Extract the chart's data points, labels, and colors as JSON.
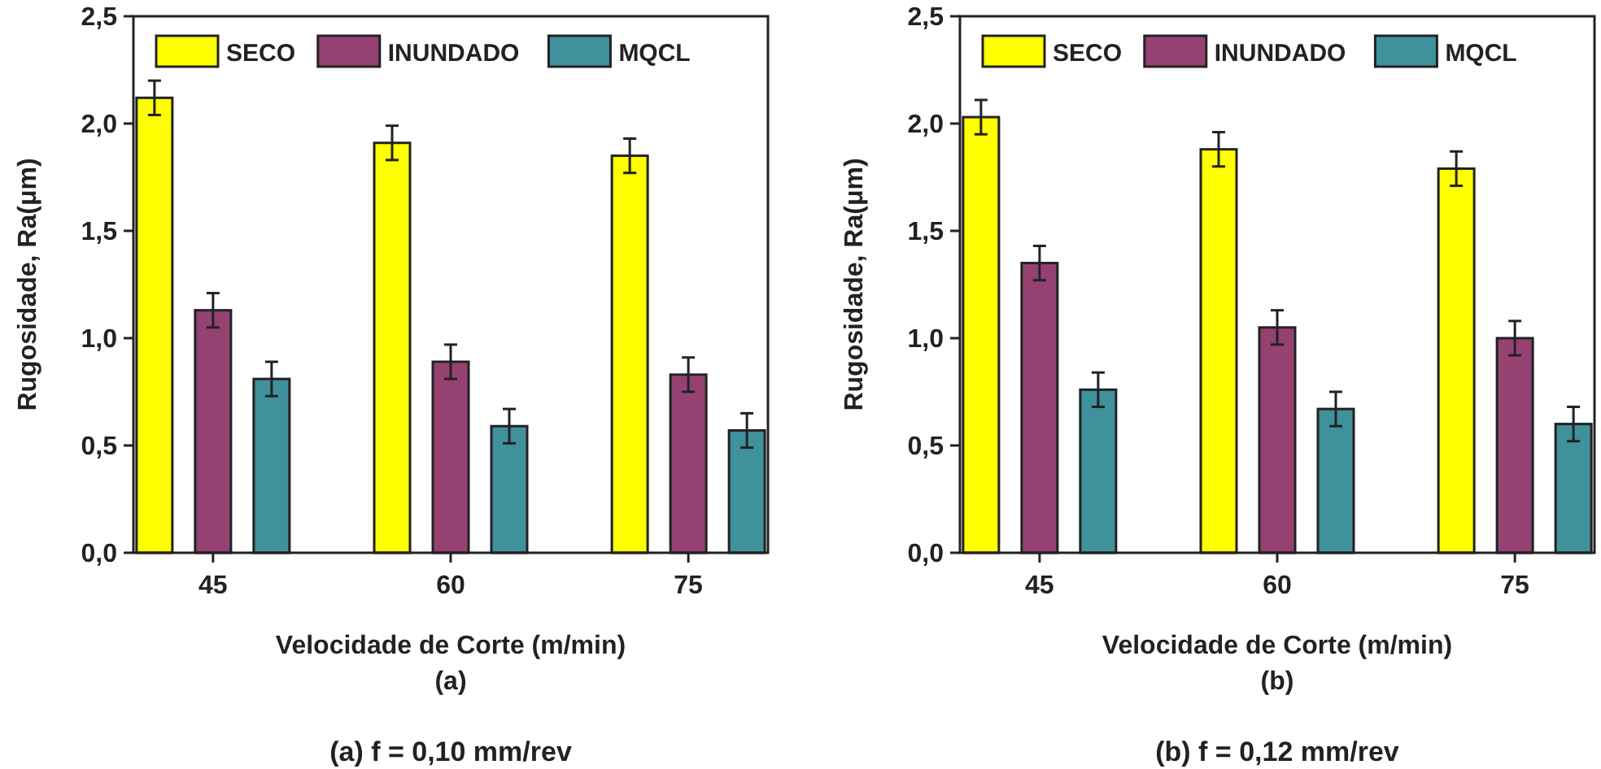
{
  "chart_data": [
    {
      "type": "bar",
      "xlabel": "Velocidade de Corte (m/min)",
      "ylabel": "Rugosidade, Ra(μm)",
      "annotations": [
        "(a)",
        "(a) f = 0,10 mm/rev"
      ],
      "categories": [
        "45",
        "60",
        "75"
      ],
      "series": [
        {
          "name": "SECO",
          "color": "#ffff00",
          "values": [
            2.12,
            1.91,
            1.85
          ],
          "errors": [
            0.08,
            0.08,
            0.08
          ]
        },
        {
          "name": "INUNDADO",
          "color": "#954273",
          "values": [
            1.13,
            0.89,
            0.83
          ],
          "errors": [
            0.08,
            0.08,
            0.08
          ]
        },
        {
          "name": "MQCL",
          "color": "#3f919b",
          "values": [
            0.81,
            0.59,
            0.57
          ],
          "errors": [
            0.08,
            0.08,
            0.08
          ]
        }
      ],
      "ylim": [
        0,
        2.5
      ],
      "yticks": [
        {
          "value": 0,
          "label": "0,0"
        },
        {
          "value": 0.5,
          "label": "0,5"
        },
        {
          "value": 1,
          "label": "1,0"
        },
        {
          "value": 1.5,
          "label": "1,5"
        },
        {
          "value": 2,
          "label": "2,0"
        },
        {
          "value": 2.5,
          "label": "2,5"
        }
      ],
      "legend": "top"
    },
    {
      "type": "bar",
      "xlabel": "Velocidade de Corte (m/min)",
      "ylabel": "Rugosidade, Ra(μm)",
      "annotations": [
        "(b)",
        "(b) f = 0,12 mm/rev"
      ],
      "categories": [
        "45",
        "60",
        "75"
      ],
      "series": [
        {
          "name": "SECO",
          "color": "#ffff00",
          "values": [
            2.03,
            1.88,
            1.79
          ],
          "errors": [
            0.08,
            0.08,
            0.08
          ]
        },
        {
          "name": "INUNDADO",
          "color": "#954273",
          "values": [
            1.35,
            1.05,
            1.0
          ],
          "errors": [
            0.08,
            0.08,
            0.08
          ]
        },
        {
          "name": "MQCL",
          "color": "#3f919b",
          "values": [
            0.76,
            0.67,
            0.6
          ],
          "errors": [
            0.08,
            0.08,
            0.08
          ]
        }
      ],
      "ylim": [
        0,
        2.5
      ],
      "yticks": [
        {
          "value": 0,
          "label": "0,0"
        },
        {
          "value": 0.5,
          "label": "0,5"
        },
        {
          "value": 1,
          "label": "1,0"
        },
        {
          "value": 1.5,
          "label": "1,5"
        },
        {
          "value": 2,
          "label": "2,0"
        },
        {
          "value": 2.5,
          "label": "2,5"
        }
      ],
      "legend": "top"
    }
  ]
}
